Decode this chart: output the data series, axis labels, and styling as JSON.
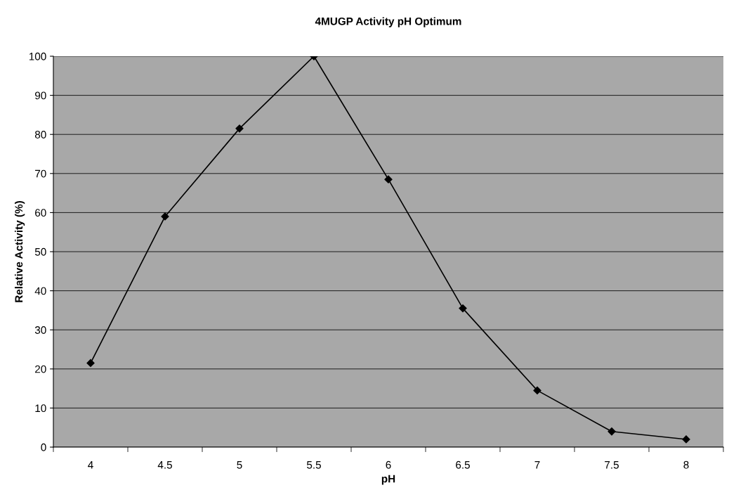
{
  "chart_data": {
    "type": "line",
    "title": "4MUGP Activity pH Optimum",
    "xlabel": "pH",
    "ylabel": "Relative Activity (%)",
    "categories": [
      "4",
      "4.5",
      "5",
      "5.5",
      "6",
      "6.5",
      "7",
      "7.5",
      "8"
    ],
    "series": [
      {
        "color": "#000000",
        "values": [
          21.5,
          59,
          81.5,
          100,
          68.5,
          35.5,
          14.5,
          4,
          2
        ]
      }
    ],
    "ylim": [
      0,
      100
    ],
    "yticks": [
      0,
      10,
      20,
      30,
      40,
      50,
      60,
      70,
      80,
      90,
      100
    ],
    "grid": "y",
    "legend": false,
    "marker": "diamond",
    "line_style": "solid"
  }
}
